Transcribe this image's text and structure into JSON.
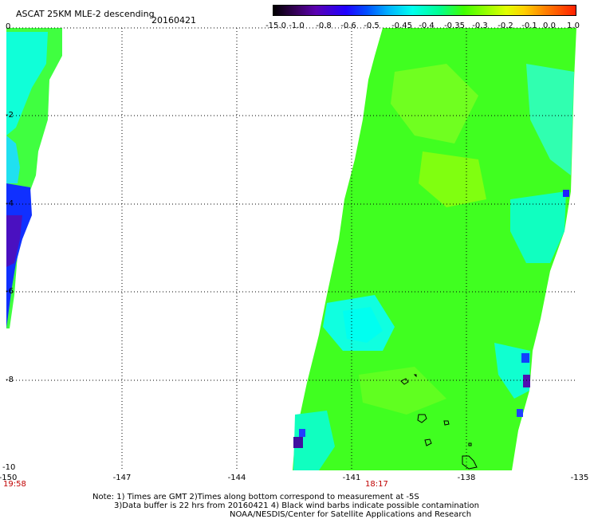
{
  "header": {
    "title": "ASCAT 25KM MLE-2 descending",
    "date": "20160421"
  },
  "colorbar": {
    "labels": [
      "-15.0",
      "-1.0",
      "-0.8",
      "-0.6",
      "-0.5",
      "-0.45",
      "-0.4",
      "-0.35",
      "-0.3",
      "-0.2",
      "-0.1",
      "0.0",
      "1.0"
    ],
    "colors": [
      "#000000",
      "#5a00b0",
      "#2000ff",
      "#00b0ff",
      "#00ffee",
      "#00ff90",
      "#40ff00",
      "#90ff00",
      "#ffd000",
      "#ff2000"
    ]
  },
  "axes": {
    "lat_labels": [
      "0",
      "-2",
      "-4",
      "-6",
      "-8",
      "-10"
    ],
    "lon_labels": [
      "-150",
      "-147",
      "-144",
      "-141",
      "-138",
      "-135"
    ],
    "time_labels": [
      "19:58",
      "18:17"
    ]
  },
  "footer": {
    "line1": "Note: 1) Times are GMT 2)Times along bottom correspond to measurement at -5S",
    "line2": "3)Data buffer is 22 hrs from 20160421 4) Black wind barbs indicate possible contamination",
    "line3": "NOAA/NESDIS/Center for Satellite Applications and Research"
  }
}
